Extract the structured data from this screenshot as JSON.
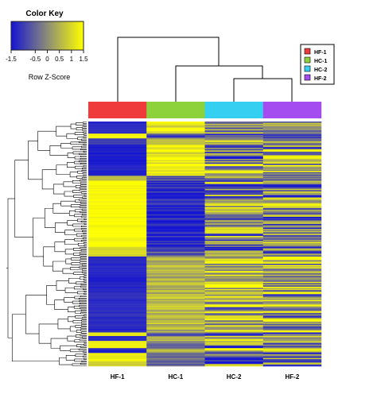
{
  "chart_data": {
    "type": "heatmap",
    "title": "",
    "color_key": {
      "title": "Color Key",
      "xlabel": "Row Z-Score",
      "ticks": [
        "-1.5",
        "-0.5",
        "0",
        "0.5",
        "1",
        "1.5"
      ],
      "range": [
        -1.5,
        1.5
      ],
      "low_color": "#1414d2",
      "mid_color": "#8c8c78",
      "high_color": "#ffff00"
    },
    "columns": [
      "HF-1",
      "HC-1",
      "HC-2",
      "HF-2"
    ],
    "column_colors": [
      "#ef3b3b",
      "#8dd23a",
      "#35cff2",
      "#a54cf0"
    ],
    "legend": {
      "placement": "top-right",
      "items": [
        {
          "label": "HF-1",
          "color": "#ef3b3b"
        },
        {
          "label": "HC-1",
          "color": "#8dd23a"
        },
        {
          "label": "HC-2",
          "color": "#35cff2"
        },
        {
          "label": "HF-2",
          "color": "#a54cf0"
        }
      ]
    },
    "column_dendrogram": {
      "merge_order": [
        [
          "HC-2",
          "HF-2"
        ],
        [
          "HC-1",
          "HC-2+HF-2"
        ],
        [
          "HF-1",
          "HC-1+HC-2+HF-2"
        ]
      ]
    },
    "row_blocks": [
      {
        "rows": 10,
        "values": [
          -1.3,
          1.2,
          0.1,
          0.0
        ]
      },
      {
        "rows": 4,
        "values": [
          1.3,
          -0.9,
          -0.2,
          -0.2
        ]
      },
      {
        "rows": 5,
        "values": [
          -1.0,
          0.7,
          0.2,
          0.1
        ]
      },
      {
        "rows": 26,
        "values": [
          -1.4,
          1.3,
          0.0,
          0.1
        ]
      },
      {
        "rows": 4,
        "values": [
          0.6,
          -0.5,
          0.0,
          -0.1
        ]
      },
      {
        "rows": 55,
        "values": [
          1.4,
          -1.3,
          0.0,
          -0.1
        ]
      },
      {
        "rows": 8,
        "values": [
          1.0,
          -0.6,
          -0.2,
          -0.2
        ]
      },
      {
        "rows": 30,
        "values": [
          -1.3,
          0.5,
          0.4,
          0.4
        ]
      },
      {
        "rows": 30,
        "values": [
          -1.2,
          0.6,
          0.3,
          0.3
        ]
      },
      {
        "rows": 3,
        "values": [
          -1.3,
          0.5,
          0.3,
          0.5
        ]
      },
      {
        "rows": 3,
        "values": [
          1.3,
          -0.5,
          -0.4,
          -0.4
        ]
      },
      {
        "rows": 4,
        "values": [
          -1.3,
          0.4,
          0.5,
          0.4
        ]
      },
      {
        "rows": 6,
        "values": [
          1.3,
          -0.6,
          -0.3,
          -0.4
        ]
      },
      {
        "rows": 4,
        "values": [
          -1.3,
          0.4,
          0.5,
          0.4
        ]
      },
      {
        "rows": 7,
        "values": [
          1.3,
          -0.3,
          -0.5,
          -0.5
        ]
      },
      {
        "rows": 4,
        "values": [
          0.9,
          -0.4,
          -0.2,
          -0.3
        ]
      }
    ]
  }
}
